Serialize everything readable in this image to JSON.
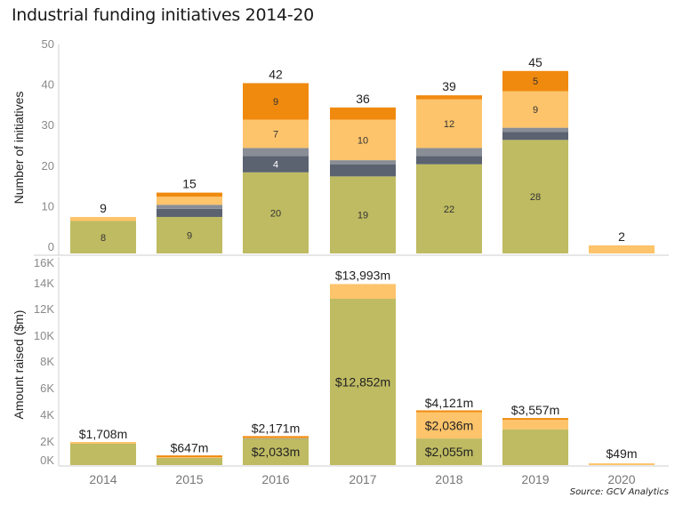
{
  "title": "Industrial funding initiatives 2014-20",
  "source": "Source: GCV Analytics",
  "colors": {
    "green": "#bfbb62",
    "dark_gray": "#5b6270",
    "light_gray": "#888d96",
    "light_orange": "#fdc46b",
    "orange": "#f08a0f"
  },
  "chart_data": [
    {
      "type": "bar",
      "stacked": true,
      "title": "Industrial funding initiatives 2014-20",
      "ylabel": "Number of initiatives",
      "xlabel": "",
      "ylim": [
        0,
        50
      ],
      "yticks": [
        "0",
        "10",
        "20",
        "30",
        "40",
        "50"
      ],
      "grid": false,
      "categories": [
        "2014",
        "2015",
        "2016",
        "2017",
        "2018",
        "2019",
        "2020"
      ],
      "series": [
        {
          "name": "green",
          "color_key": "green",
          "values": [
            8,
            9,
            20,
            19,
            22,
            28,
            0
          ]
        },
        {
          "name": "dark gray",
          "color_key": "dark_gray",
          "values": [
            0,
            2,
            4,
            3,
            2,
            2,
            0
          ]
        },
        {
          "name": "light gray",
          "color_key": "light_gray",
          "values": [
            0,
            1,
            2,
            1,
            2,
            1,
            0
          ]
        },
        {
          "name": "light orange",
          "color_key": "light_orange",
          "values": [
            1,
            2,
            7,
            10,
            12,
            9,
            2
          ]
        },
        {
          "name": "orange",
          "color_key": "orange",
          "values": [
            0,
            1,
            9,
            3,
            1,
            5,
            0
          ]
        }
      ],
      "segment_labels": [
        {
          "category": "2014",
          "series": "green",
          "text": "8"
        },
        {
          "category": "2015",
          "series": "green",
          "text": "9"
        },
        {
          "category": "2016",
          "series": "green",
          "text": "20"
        },
        {
          "category": "2016",
          "series": "dark gray",
          "text": "4"
        },
        {
          "category": "2016",
          "series": "light orange",
          "text": "7"
        },
        {
          "category": "2016",
          "series": "orange",
          "text": "9"
        },
        {
          "category": "2017",
          "series": "green",
          "text": "19"
        },
        {
          "category": "2017",
          "series": "light orange",
          "text": "10"
        },
        {
          "category": "2018",
          "series": "green",
          "text": "22"
        },
        {
          "category": "2018",
          "series": "light orange",
          "text": "12"
        },
        {
          "category": "2019",
          "series": "green",
          "text": "28"
        },
        {
          "category": "2019",
          "series": "light orange",
          "text": "9"
        },
        {
          "category": "2019",
          "series": "orange",
          "text": "5"
        }
      ],
      "totals": [
        "9",
        "15",
        "42",
        "36",
        "39",
        "45",
        "2"
      ]
    },
    {
      "type": "bar",
      "stacked": true,
      "ylabel": "Amount raised ($m)",
      "xlabel": "",
      "ylim": [
        0,
        16000
      ],
      "yticks": [
        "0K",
        "2K",
        "4K",
        "6K",
        "8K",
        "10K",
        "12K",
        "14K",
        "16K"
      ],
      "grid": false,
      "categories": [
        "2014",
        "2015",
        "2016",
        "2017",
        "2018",
        "2019",
        "2020"
      ],
      "series": [
        {
          "name": "green",
          "color_key": "green",
          "values": [
            1650,
            560,
            2033,
            12852,
            2055,
            2760,
            0
          ]
        },
        {
          "name": "light gray",
          "color_key": "light_gray",
          "values": [
            0,
            0,
            30,
            0,
            0,
            0,
            0
          ]
        },
        {
          "name": "light orange",
          "color_key": "light_orange",
          "values": [
            58,
            50,
            40,
            1141,
            2036,
            737,
            49
          ]
        },
        {
          "name": "orange",
          "color_key": "orange",
          "values": [
            0,
            37,
            68,
            0,
            30,
            60,
            0
          ]
        }
      ],
      "segment_labels": [
        {
          "category": "2016",
          "series": "green",
          "text": "$2,033m"
        },
        {
          "category": "2017",
          "series": "green",
          "text": "$12,852m"
        },
        {
          "category": "2018",
          "series": "green",
          "text": "$2,055m"
        },
        {
          "category": "2018",
          "series": "light orange",
          "text": "$2,036m"
        }
      ],
      "totals": [
        "$1,708m",
        "$647m",
        "$2,171m",
        "$13,993m",
        "$4,121m",
        "$3,557m",
        "$49m"
      ]
    }
  ]
}
